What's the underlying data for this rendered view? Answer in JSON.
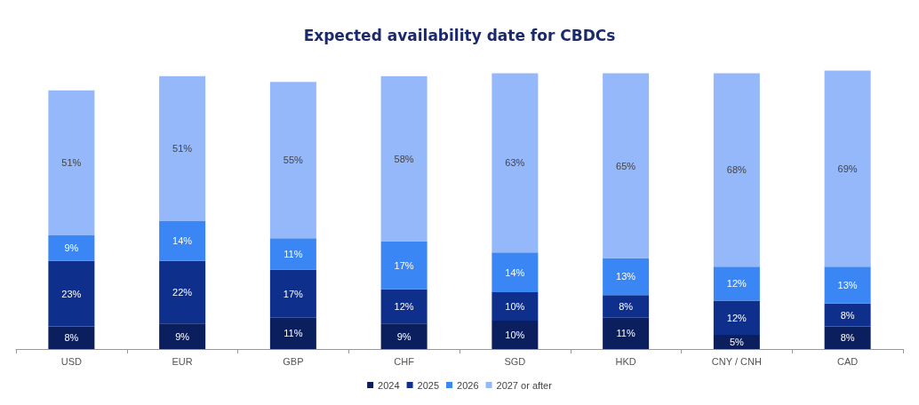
{
  "chart_data": {
    "type": "bar",
    "title": "Expected availability date for CBDCs",
    "categories": [
      "USD",
      "EUR",
      "GBP",
      "CHF",
      "SGD",
      "HKD",
      "CNY / CNH",
      "CAD"
    ],
    "stacked": true,
    "legend": "bottom",
    "tick_labels": "x",
    "series": [
      {
        "name": "2024",
        "color": "#0b1f5e",
        "values": [
          8,
          9,
          11,
          9,
          10,
          11,
          5,
          8
        ],
        "value_labels": [
          "8%",
          "9%",
          "11%",
          "9%",
          "10%",
          "11%",
          "5%",
          "8%"
        ]
      },
      {
        "name": "2025",
        "color": "#0f2f8c",
        "values": [
          23,
          22,
          17,
          12,
          10,
          8,
          12,
          8
        ],
        "value_labels": [
          "23%",
          "22%",
          "17%",
          "12%",
          "10%",
          "8%",
          "12%",
          "8%"
        ]
      },
      {
        "name": "2026",
        "color": "#3a86f4",
        "values": [
          9,
          14,
          11,
          17,
          14,
          13,
          12,
          13
        ],
        "value_labels": [
          "9%",
          "14%",
          "11%",
          "17%",
          "14%",
          "13%",
          "12%",
          "13%"
        ]
      },
      {
        "name": "2027 or after",
        "color": "#94b8f9",
        "values": [
          51,
          51,
          55,
          58,
          63,
          65,
          68,
          69
        ],
        "value_labels": [
          "51%",
          "51%",
          "55%",
          "58%",
          "63%",
          "65%",
          "68%",
          "69%"
        ]
      }
    ]
  }
}
